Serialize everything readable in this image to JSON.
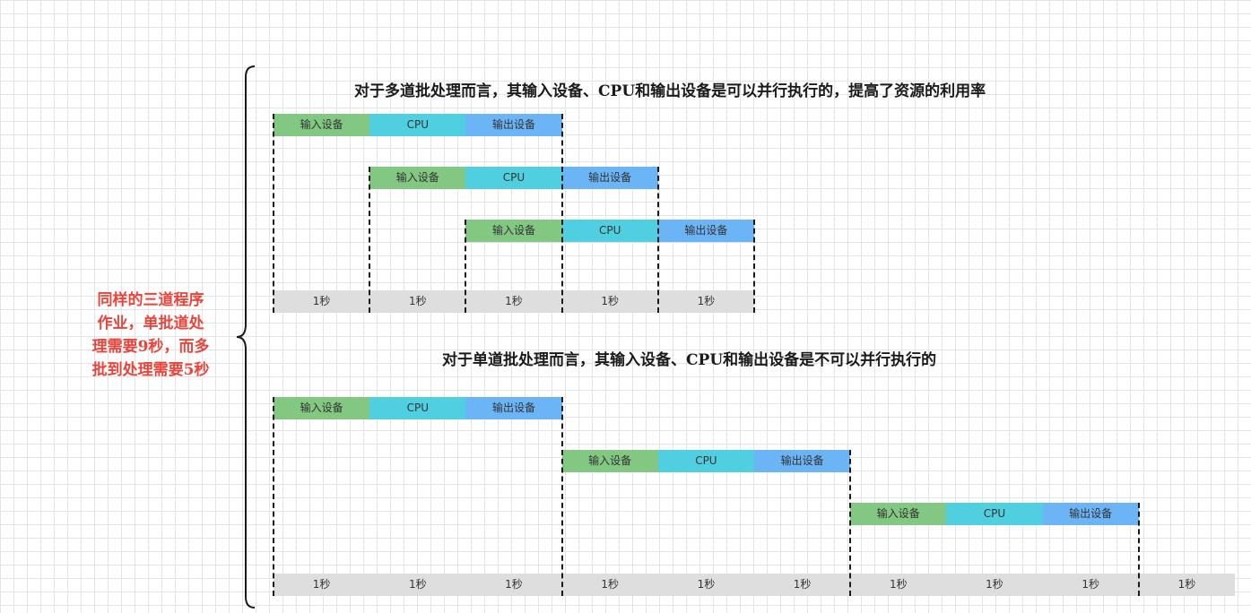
{
  "brace_note": {
    "lines": [
      "同样的三道程序",
      "作业，单批道处",
      "理需要9秒，而多",
      "批到处理需要5秒"
    ]
  },
  "multi": {
    "title": "对于多道批处理而言，其输入设备、CPU和输出设备是可以并行执行的，提高了资源的利用率",
    "jobs": [
      {
        "start": 0,
        "stages": [
          "输入设备",
          "CPU",
          "输出设备"
        ]
      },
      {
        "start": 1,
        "stages": [
          "输入设备",
          "CPU",
          "输出设备"
        ]
      },
      {
        "start": 2,
        "stages": [
          "输入设备",
          "CPU",
          "输出设备"
        ]
      }
    ],
    "ticks": [
      "1秒",
      "1秒",
      "1秒",
      "1秒",
      "1秒"
    ]
  },
  "single": {
    "title": "对于单道批处理而言，其输入设备、CPU和输出设备是不可以并行执行的",
    "jobs": [
      {
        "start": 0,
        "stages": [
          "输入设备",
          "CPU",
          "输出设备"
        ]
      },
      {
        "start": 3,
        "stages": [
          "输入设备",
          "CPU",
          "输出设备"
        ]
      },
      {
        "start": 6,
        "stages": [
          "输入设备",
          "CPU",
          "输出设备"
        ]
      }
    ],
    "ticks": [
      "1秒",
      "1秒",
      "1秒",
      "1秒",
      "1秒",
      "1秒",
      "1秒",
      "1秒",
      "1秒",
      "1秒"
    ]
  },
  "colors": {
    "input": "#82c882",
    "cpu": "#4fcfe0",
    "output": "#6bb4f5",
    "timebar": "#dedede",
    "note": "#e8453c"
  }
}
